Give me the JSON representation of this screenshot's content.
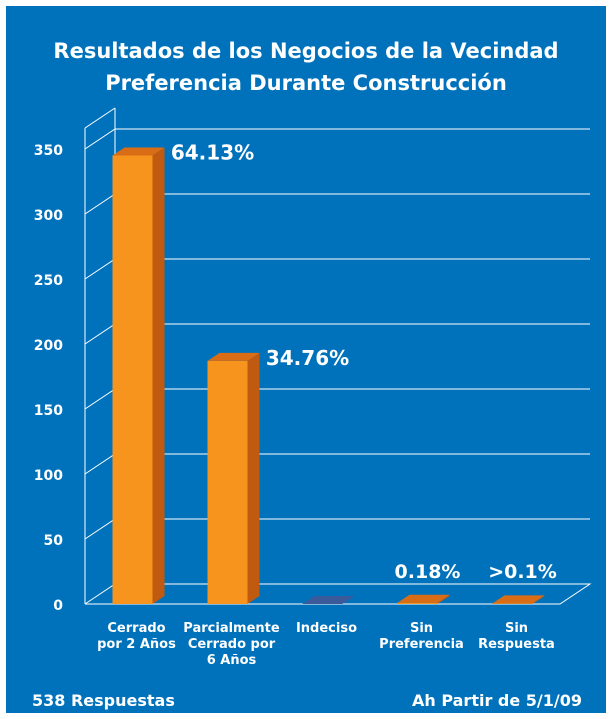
{
  "chart_data": {
    "type": "bar3d",
    "title": [
      "Resultados de los Negocios de la Vecindad",
      "Preferencia Durante Construcción"
    ],
    "categories": [
      [
        "Cerrado",
        "por 2 Años"
      ],
      [
        "Parcialmente",
        "Cerrado por",
        "6 Años"
      ],
      [
        "Indeciso"
      ],
      [
        "Sin",
        "Preferencia"
      ],
      [
        "Sin",
        "Respuesta"
      ]
    ],
    "values": [
      345,
      187,
      0,
      1,
      0.5
    ],
    "annotations": [
      "64.13%",
      "34.76%",
      null,
      "0.18%",
      ">0.1%"
    ],
    "color": "#f7941d",
    "ylim": [
      0,
      350
    ],
    "yticks": [
      0,
      50,
      100,
      150,
      200,
      250,
      300,
      350
    ],
    "grid": true,
    "footer_left": "538  Respuestas",
    "footer_right": "Ah Partir de 5/1/09"
  }
}
